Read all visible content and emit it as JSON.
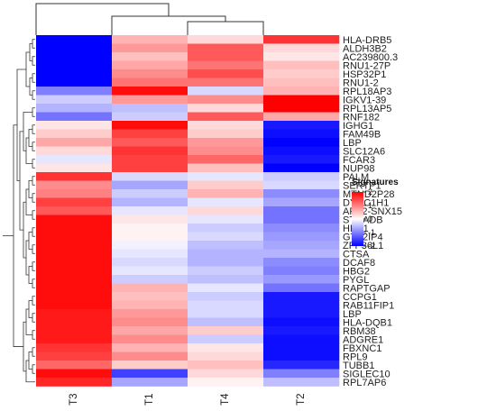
{
  "chart_data": {
    "type": "heatmap",
    "columns": [
      "T3",
      "T1",
      "T4",
      "T2"
    ],
    "rows": [
      "HLA-DRB5",
      "ALDH3B2",
      "AC239800.3",
      "RNU1-27P",
      "HSP32P1",
      "RNU1-2",
      "RPL18AP3",
      "IGKV1-39",
      "RPL13AP5",
      "RNF182",
      "IGHG1",
      "FAM49B",
      "LBP",
      "SLC12A6",
      "FCAR3",
      "NUP98",
      "PALM",
      "SERTP1",
      "MTND2P28",
      "DYNC1H1",
      "ARL2-SNX15",
      "STRADB",
      "HBA1",
      "GTF2IP4",
      "ZFP36L1",
      "CTSA",
      "DCAF8",
      "HBG2",
      "PYGL",
      "RAPTGAP",
      "CCPG1",
      "RAB11FIP1",
      "LBP",
      "HLA-DQB1",
      "RBM38",
      "ADGRE1",
      "FBXNC1",
      "RPL9",
      "TUBB1",
      "SIGLEC10",
      "RPL7AP6"
    ],
    "values": [
      [
        -2.0,
        0.6,
        0.3,
        1.6
      ],
      [
        -2.0,
        0.8,
        1.3,
        0.3
      ],
      [
        -2.0,
        0.5,
        1.3,
        0.2
      ],
      [
        -2.0,
        0.7,
        1.1,
        0.5
      ],
      [
        -2.0,
        0.9,
        1.4,
        0.4
      ],
      [
        -2.0,
        1.1,
        1.1,
        0.5
      ],
      [
        -1.0,
        1.9,
        -0.3,
        0.6
      ],
      [
        -0.4,
        0.8,
        0.9,
        2.0
      ],
      [
        -0.6,
        -0.5,
        0.3,
        2.0
      ],
      [
        -1.1,
        -0.4,
        1.3,
        0.7
      ],
      [
        0.2,
        1.9,
        0.3,
        -1.8
      ],
      [
        0.4,
        1.5,
        0.4,
        -1.9
      ],
      [
        0.7,
        1.3,
        0.8,
        -2.0
      ],
      [
        0.3,
        1.6,
        0.9,
        -1.9
      ],
      [
        -0.2,
        1.5,
        1.2,
        -1.8
      ],
      [
        0.2,
        1.5,
        0.5,
        -2.0
      ],
      [
        1.6,
        -0.3,
        -0.2,
        -0.4
      ],
      [
        0.9,
        -0.7,
        0.4,
        -0.3
      ],
      [
        1.0,
        -0.4,
        0.6,
        -0.9
      ],
      [
        1.5,
        -0.6,
        -0.2,
        -0.7
      ],
      [
        1.3,
        -0.2,
        0.3,
        -1.1
      ],
      [
        1.9,
        0.2,
        -0.2,
        -1.1
      ],
      [
        1.9,
        0.1,
        -0.4,
        -0.9
      ],
      [
        1.9,
        0.1,
        -0.3,
        -0.8
      ],
      [
        1.9,
        -0.1,
        -0.5,
        -0.7
      ],
      [
        1.9,
        -0.2,
        -0.6,
        -0.6
      ],
      [
        1.9,
        -0.3,
        -0.6,
        -0.9
      ],
      [
        1.9,
        -0.2,
        -0.4,
        -1.0
      ],
      [
        1.9,
        -0.4,
        -0.5,
        -0.8
      ],
      [
        1.9,
        0.6,
        -0.2,
        -1.1
      ],
      [
        1.9,
        0.5,
        -0.4,
        -1.8
      ],
      [
        1.9,
        0.6,
        -0.3,
        -1.8
      ],
      [
        1.8,
        0.8,
        -0.3,
        -1.8
      ],
      [
        1.8,
        0.9,
        -0.5,
        -1.9
      ],
      [
        1.8,
        0.7,
        0.4,
        -1.8
      ],
      [
        1.8,
        0.9,
        -0.4,
        -1.9
      ],
      [
        1.6,
        0.6,
        0.2,
        -1.9
      ],
      [
        1.5,
        0.9,
        0.3,
        -1.9
      ],
      [
        1.2,
        0.4,
        0.5,
        -1.7
      ],
      [
        1.9,
        -1.5,
        0.3,
        -1.0
      ],
      [
        1.7,
        -0.7,
        0.1,
        -0.5
      ]
    ],
    "legend": {
      "title": "Signatures",
      "ticks": [
        2,
        1,
        0,
        -1,
        -2
      ],
      "range": [
        -2,
        2
      ],
      "placement": "right"
    },
    "colors": {
      "low": "#0000ff",
      "mid": "#ffffff",
      "high": "#ff0000"
    }
  }
}
